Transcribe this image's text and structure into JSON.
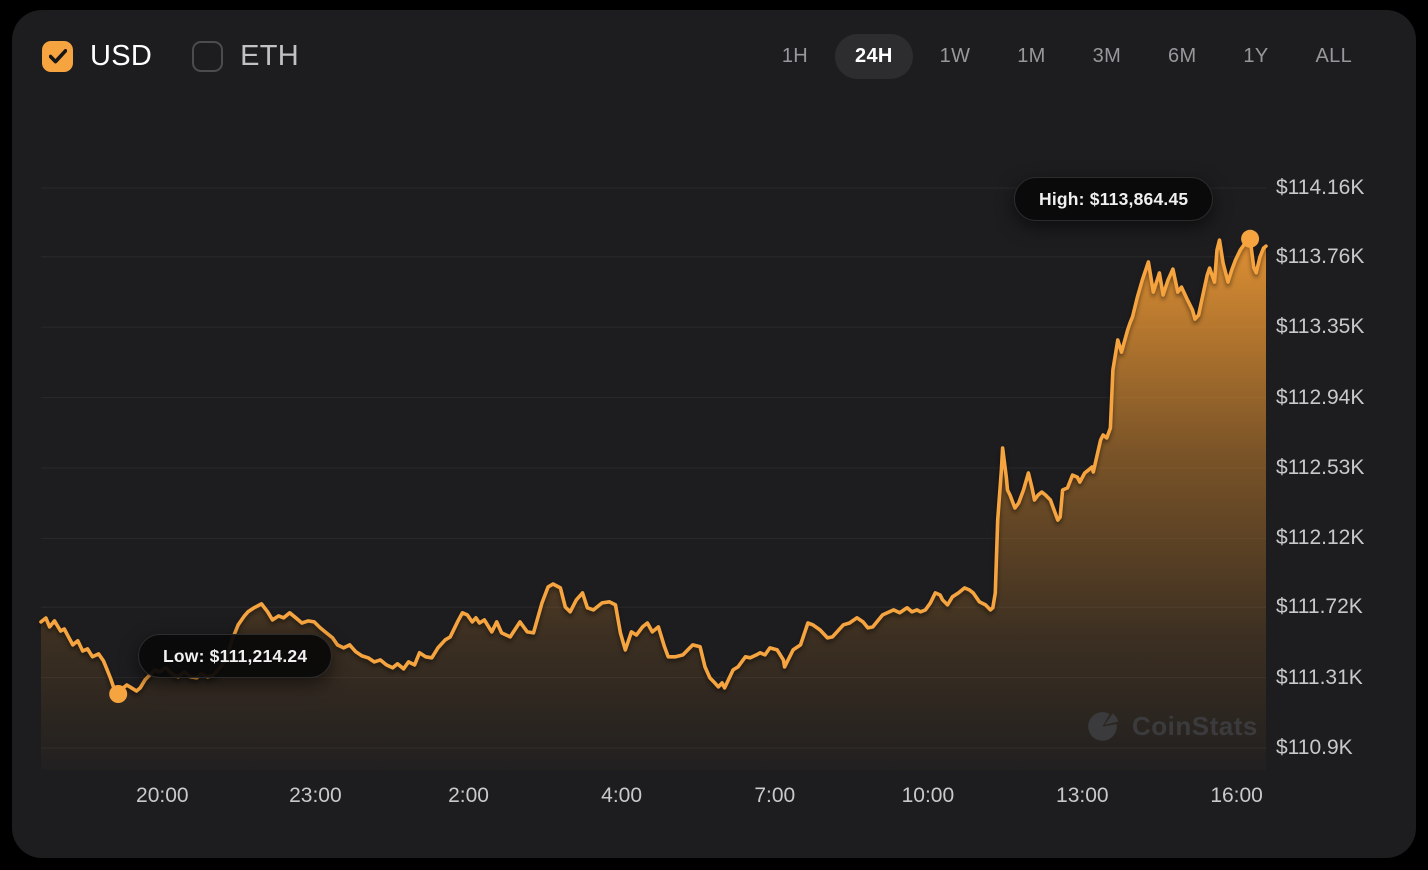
{
  "header": {
    "currency_toggles": [
      {
        "label": "USD",
        "checked": true
      },
      {
        "label": "ETH",
        "checked": false
      }
    ],
    "ranges": {
      "options": [
        "1H",
        "24H",
        "1W",
        "1M",
        "3M",
        "6M",
        "1Y",
        "ALL"
      ],
      "selected": "24H"
    }
  },
  "tooltips": {
    "high": "High: $113,864.45",
    "low": "Low: $111,214.24"
  },
  "watermark": {
    "text": "CoinStats"
  },
  "colors": {
    "accent": "#F5A440",
    "panel_bg": "#1D1D1F",
    "tooltip_bg": "#0C0C0C",
    "tick_text": "#C9C9CB",
    "muted_text": "#98989C"
  },
  "chart_data": {
    "type": "area",
    "title": "Bitcoin price (USD), 24H",
    "legend": "none",
    "grid": "horizontal",
    "ylim": [
      110772,
      114585
    ],
    "high": {
      "pos": 0.987,
      "price": 113864.45,
      "label": "High: $113,864.45"
    },
    "low": {
      "pos": 0.063,
      "price": 111214.24,
      "label": "Low: $111,214.24"
    },
    "y_ticks": [
      {
        "price": 114160,
        "label": "$114.16K"
      },
      {
        "price": 113760,
        "label": "$113.76K"
      },
      {
        "price": 113350,
        "label": "$113.35K"
      },
      {
        "price": 112940,
        "label": "$112.94K"
      },
      {
        "price": 112530,
        "label": "$112.53K"
      },
      {
        "price": 112120,
        "label": "$112.12K"
      },
      {
        "price": 111720,
        "label": "$111.72K"
      },
      {
        "price": 111310,
        "label": "$111.31K"
      },
      {
        "price": 110900,
        "label": "$110.9K"
      }
    ],
    "x_ticks": [
      {
        "pos": 0.099,
        "label": "20:00"
      },
      {
        "pos": 0.224,
        "label": "23:00"
      },
      {
        "pos": 0.349,
        "label": "2:00"
      },
      {
        "pos": 0.474,
        "label": "4:00"
      },
      {
        "pos": 0.599,
        "label": "7:00"
      },
      {
        "pos": 0.724,
        "label": "10:00"
      },
      {
        "pos": 0.85,
        "label": "13:00"
      },
      {
        "pos": 0.976,
        "label": "16:00"
      }
    ],
    "series": [
      [
        0.0,
        111634
      ],
      [
        0.004,
        111657
      ],
      [
        0.007,
        111605
      ],
      [
        0.011,
        111640
      ],
      [
        0.016,
        111581
      ],
      [
        0.019,
        111593
      ],
      [
        0.022,
        111553
      ],
      [
        0.026,
        111500
      ],
      [
        0.03,
        111524
      ],
      [
        0.034,
        111465
      ],
      [
        0.038,
        111477
      ],
      [
        0.042,
        111431
      ],
      [
        0.047,
        111448
      ],
      [
        0.051,
        111407
      ],
      [
        0.054,
        111355
      ],
      [
        0.057,
        111302
      ],
      [
        0.06,
        111238
      ],
      [
        0.063,
        111214
      ],
      [
        0.066,
        111244
      ],
      [
        0.07,
        111267
      ],
      [
        0.074,
        111250
      ],
      [
        0.078,
        111232
      ],
      [
        0.081,
        111250
      ],
      [
        0.085,
        111297
      ],
      [
        0.089,
        111326
      ],
      [
        0.093,
        111355
      ],
      [
        0.097,
        111343
      ],
      [
        0.102,
        111367
      ],
      [
        0.107,
        111332
      ],
      [
        0.112,
        111314
      ],
      [
        0.117,
        111343
      ],
      [
        0.122,
        111314
      ],
      [
        0.127,
        111308
      ],
      [
        0.131,
        111332
      ],
      [
        0.136,
        111314
      ],
      [
        0.141,
        111326
      ],
      [
        0.146,
        111367
      ],
      [
        0.151,
        111413
      ],
      [
        0.156,
        111530
      ],
      [
        0.161,
        111617
      ],
      [
        0.166,
        111669
      ],
      [
        0.169,
        111693
      ],
      [
        0.174,
        111716
      ],
      [
        0.18,
        111739
      ],
      [
        0.185,
        111693
      ],
      [
        0.189,
        111646
      ],
      [
        0.194,
        111669
      ],
      [
        0.198,
        111658
      ],
      [
        0.203,
        111687
      ],
      [
        0.208,
        111658
      ],
      [
        0.213,
        111628
      ],
      [
        0.218,
        111640
      ],
      [
        0.223,
        111634
      ],
      [
        0.228,
        111599
      ],
      [
        0.233,
        111570
      ],
      [
        0.238,
        111541
      ],
      [
        0.242,
        111500
      ],
      [
        0.247,
        111483
      ],
      [
        0.252,
        111500
      ],
      [
        0.257,
        111460
      ],
      [
        0.262,
        111436
      ],
      [
        0.267,
        111425
      ],
      [
        0.272,
        111401
      ],
      [
        0.277,
        111413
      ],
      [
        0.282,
        111384
      ],
      [
        0.287,
        111367
      ],
      [
        0.291,
        111390
      ],
      [
        0.296,
        111361
      ],
      [
        0.3,
        111401
      ],
      [
        0.305,
        111384
      ],
      [
        0.309,
        111454
      ],
      [
        0.314,
        111431
      ],
      [
        0.319,
        111425
      ],
      [
        0.324,
        111483
      ],
      [
        0.33,
        111530
      ],
      [
        0.334,
        111547
      ],
      [
        0.34,
        111634
      ],
      [
        0.344,
        111687
      ],
      [
        0.348,
        111675
      ],
      [
        0.352,
        111634
      ],
      [
        0.355,
        111658
      ],
      [
        0.358,
        111628
      ],
      [
        0.362,
        111646
      ],
      [
        0.368,
        111576
      ],
      [
        0.372,
        111634
      ],
      [
        0.376,
        111570
      ],
      [
        0.383,
        111547
      ],
      [
        0.391,
        111634
      ],
      [
        0.397,
        111576
      ],
      [
        0.402,
        111570
      ],
      [
        0.409,
        111745
      ],
      [
        0.414,
        111838
      ],
      [
        0.418,
        111855
      ],
      [
        0.424,
        111832
      ],
      [
        0.428,
        111721
      ],
      [
        0.432,
        111693
      ],
      [
        0.437,
        111762
      ],
      [
        0.442,
        111803
      ],
      [
        0.446,
        111716
      ],
      [
        0.451,
        111704
      ],
      [
        0.458,
        111745
      ],
      [
        0.464,
        111751
      ],
      [
        0.469,
        111733
      ],
      [
        0.473,
        111570
      ],
      [
        0.477,
        111471
      ],
      [
        0.482,
        111576
      ],
      [
        0.486,
        111558
      ],
      [
        0.491,
        111605
      ],
      [
        0.495,
        111628
      ],
      [
        0.499,
        111576
      ],
      [
        0.504,
        111605
      ],
      [
        0.509,
        111489
      ],
      [
        0.512,
        111431
      ],
      [
        0.518,
        111431
      ],
      [
        0.524,
        111442
      ],
      [
        0.528,
        111471
      ],
      [
        0.532,
        111500
      ],
      [
        0.538,
        111489
      ],
      [
        0.542,
        111372
      ],
      [
        0.546,
        111308
      ],
      [
        0.55,
        111279
      ],
      [
        0.553,
        111256
      ],
      [
        0.556,
        111279
      ],
      [
        0.558,
        111250
      ],
      [
        0.565,
        111355
      ],
      [
        0.569,
        111372
      ],
      [
        0.575,
        111431
      ],
      [
        0.579,
        111425
      ],
      [
        0.584,
        111442
      ],
      [
        0.587,
        111454
      ],
      [
        0.591,
        111442
      ],
      [
        0.595,
        111483
      ],
      [
        0.601,
        111471
      ],
      [
        0.606,
        111413
      ],
      [
        0.607,
        111372
      ],
      [
        0.614,
        111471
      ],
      [
        0.62,
        111500
      ],
      [
        0.626,
        111628
      ],
      [
        0.63,
        111617
      ],
      [
        0.636,
        111587
      ],
      [
        0.642,
        111541
      ],
      [
        0.646,
        111547
      ],
      [
        0.655,
        111617
      ],
      [
        0.66,
        111628
      ],
      [
        0.666,
        111658
      ],
      [
        0.671,
        111634
      ],
      [
        0.675,
        111599
      ],
      [
        0.679,
        111605
      ],
      [
        0.687,
        111675
      ],
      [
        0.696,
        111704
      ],
      [
        0.701,
        111687
      ],
      [
        0.707,
        111716
      ],
      [
        0.711,
        111693
      ],
      [
        0.715,
        111704
      ],
      [
        0.718,
        111693
      ],
      [
        0.722,
        111704
      ],
      [
        0.726,
        111745
      ],
      [
        0.73,
        111803
      ],
      [
        0.734,
        111791
      ],
      [
        0.736,
        111762
      ],
      [
        0.74,
        111733
      ],
      [
        0.744,
        111780
      ],
      [
        0.749,
        111803
      ],
      [
        0.754,
        111832
      ],
      [
        0.758,
        111820
      ],
      [
        0.761,
        111803
      ],
      [
        0.766,
        111751
      ],
      [
        0.771,
        111733
      ],
      [
        0.775,
        111704
      ],
      [
        0.777,
        111716
      ],
      [
        0.779,
        111803
      ],
      [
        0.781,
        112227
      ],
      [
        0.784,
        112518
      ],
      [
        0.785,
        112646
      ],
      [
        0.788,
        112477
      ],
      [
        0.789,
        112402
      ],
      [
        0.791,
        112373
      ],
      [
        0.795,
        112297
      ],
      [
        0.798,
        112326
      ],
      [
        0.802,
        112402
      ],
      [
        0.806,
        112501
      ],
      [
        0.809,
        112414
      ],
      [
        0.811,
        112344
      ],
      [
        0.814,
        112373
      ],
      [
        0.817,
        112390
      ],
      [
        0.82,
        112373
      ],
      [
        0.824,
        112344
      ],
      [
        0.83,
        112227
      ],
      [
        0.832,
        112245
      ],
      [
        0.834,
        112402
      ],
      [
        0.838,
        112414
      ],
      [
        0.842,
        112489
      ],
      [
        0.846,
        112477
      ],
      [
        0.848,
        112448
      ],
      [
        0.852,
        112501
      ],
      [
        0.855,
        112518
      ],
      [
        0.858,
        112536
      ],
      [
        0.859,
        112507
      ],
      [
        0.865,
        112693
      ],
      [
        0.867,
        112722
      ],
      [
        0.87,
        112705
      ],
      [
        0.873,
        112763
      ],
      [
        0.875,
        113100
      ],
      [
        0.879,
        113275
      ],
      [
        0.882,
        113205
      ],
      [
        0.887,
        113333
      ],
      [
        0.889,
        113374
      ],
      [
        0.891,
        113409
      ],
      [
        0.895,
        113525
      ],
      [
        0.899,
        113624
      ],
      [
        0.904,
        113729
      ],
      [
        0.908,
        113554
      ],
      [
        0.913,
        113665
      ],
      [
        0.916,
        113537
      ],
      [
        0.92,
        113624
      ],
      [
        0.924,
        113688
      ],
      [
        0.928,
        113554
      ],
      [
        0.931,
        113583
      ],
      [
        0.936,
        113507
      ],
      [
        0.94,
        113449
      ],
      [
        0.942,
        113397
      ],
      [
        0.945,
        113420
      ],
      [
        0.949,
        113554
      ],
      [
        0.952,
        113653
      ],
      [
        0.954,
        113694
      ],
      [
        0.958,
        113612
      ],
      [
        0.96,
        113799
      ],
      [
        0.962,
        113857
      ],
      [
        0.965,
        113723
      ],
      [
        0.969,
        113612
      ],
      [
        0.972,
        113682
      ],
      [
        0.975,
        113740
      ],
      [
        0.979,
        113799
      ],
      [
        0.983,
        113839
      ],
      [
        0.987,
        113864
      ],
      [
        0.99,
        113696
      ],
      [
        0.992,
        113667
      ],
      [
        0.995,
        113757
      ],
      [
        0.998,
        113810
      ],
      [
        1.0,
        113822
      ]
    ]
  }
}
